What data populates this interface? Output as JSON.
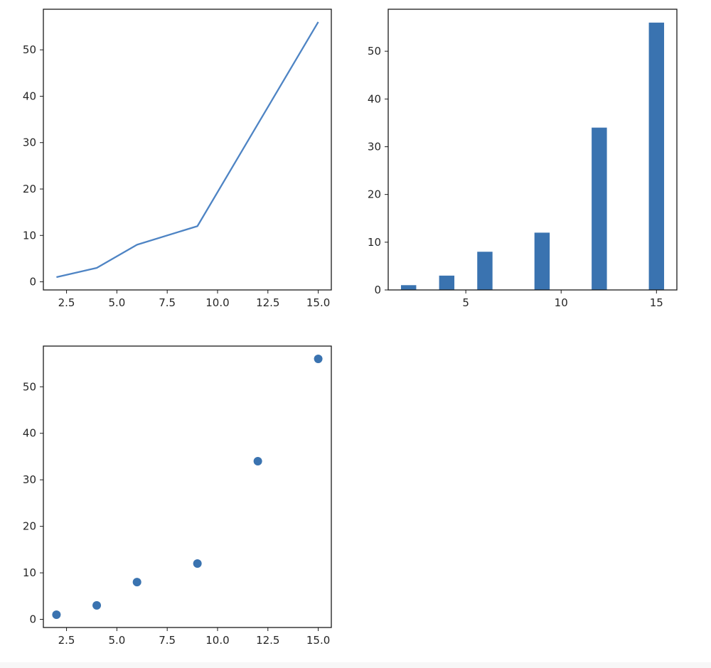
{
  "chart_data": [
    {
      "type": "line",
      "x": [
        2,
        4,
        6,
        9,
        12,
        15
      ],
      "y": [
        1,
        3,
        8,
        12,
        34,
        56
      ],
      "color": "#4e84c4",
      "xlim": [
        1.35,
        15.65
      ],
      "ylim": [
        -1.75,
        58.75
      ],
      "xticks": [
        2.5,
        5.0,
        7.5,
        10.0,
        12.5,
        15.0
      ],
      "xtick_labels": [
        "2.5",
        "5.0",
        "7.5",
        "10.0",
        "12.5",
        "15.0"
      ],
      "yticks": [
        0,
        10,
        20,
        30,
        40,
        50
      ],
      "ytick_labels": [
        "0",
        "10",
        "20",
        "30",
        "40",
        "50"
      ]
    },
    {
      "type": "bar",
      "x": [
        2,
        4,
        6,
        9,
        12,
        15
      ],
      "values": [
        1,
        3,
        8,
        12,
        34,
        56
      ],
      "bar_width": 0.8,
      "color": "#3a73b0",
      "xlim": [
        0.93,
        16.07
      ],
      "ylim": [
        0,
        58.8
      ],
      "xticks": [
        5,
        10,
        15
      ],
      "xtick_labels": [
        "5",
        "10",
        "15"
      ],
      "yticks": [
        0,
        10,
        20,
        30,
        40,
        50
      ],
      "ytick_labels": [
        "0",
        "10",
        "20",
        "30",
        "40",
        "50"
      ]
    },
    {
      "type": "scatter",
      "x": [
        2,
        4,
        6,
        9,
        12,
        15
      ],
      "y": [
        1,
        3,
        8,
        12,
        34,
        56
      ],
      "color": "#3a73b0",
      "xlim": [
        1.35,
        15.65
      ],
      "ylim": [
        -1.75,
        58.75
      ],
      "xticks": [
        2.5,
        5.0,
        7.5,
        10.0,
        12.5,
        15.0
      ],
      "xtick_labels": [
        "2.5",
        "5.0",
        "7.5",
        "10.0",
        "12.5",
        "15.0"
      ],
      "yticks": [
        0,
        10,
        20,
        30,
        40,
        50
      ],
      "ytick_labels": [
        "0",
        "10",
        "20",
        "30",
        "40",
        "50"
      ]
    }
  ]
}
